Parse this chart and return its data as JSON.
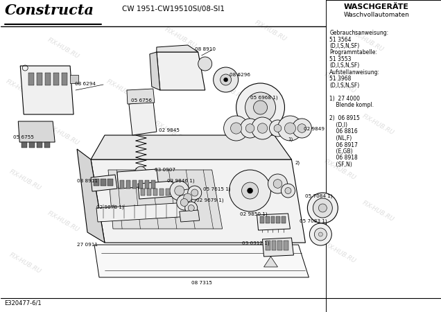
{
  "title": "CW 1951-CW19510SI/08-SI1",
  "brand": "Constructa",
  "top_right_title": "WASCHGERÄTE",
  "top_right_subtitle": "Waschvollautomaten",
  "footer_left": "E320477-6/1",
  "watermark": "FIX-HUB.RU",
  "background_color": "#ffffff",
  "right_panel_text": [
    "Gebrauchsanweisung:",
    "51 3564",
    "(D,I,S,N,SF)",
    "Programmtabelle:",
    "51 3553",
    "(D,I,S,N,SF)",
    "Aufstellanweisung:",
    "51 3968",
    "(D,I,S,N,SF)",
    "",
    "1)  27 4000",
    "    Blende kompl.",
    "",
    "2)  06 8915",
    "    (D,I)",
    "    06 8816",
    "    (NL,F)",
    "    06 8917",
    "    (E,GB)",
    "    06 8918",
    "    (SF,N)"
  ]
}
